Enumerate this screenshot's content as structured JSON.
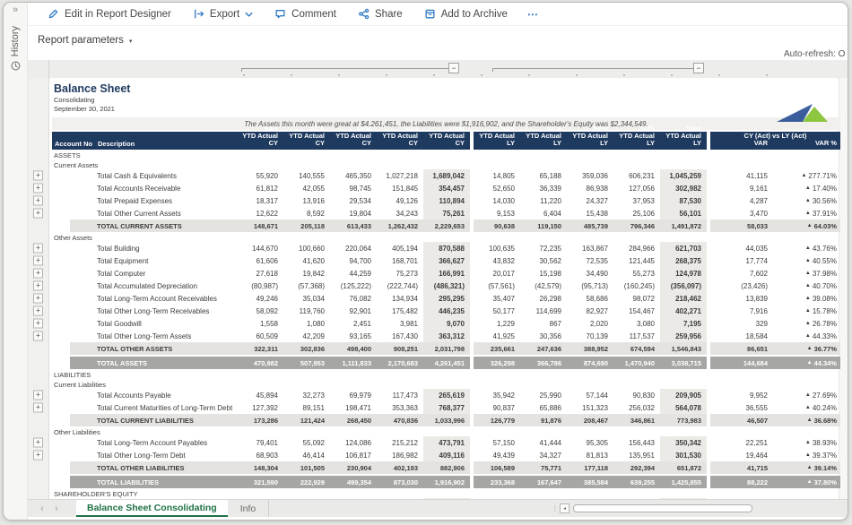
{
  "colors": {
    "accent_blue": "#2e7bc4",
    "header_navy": "#1f3a5f",
    "tab_green": "#1f7246",
    "logo_blue": "#3c5d9b",
    "logo_green": "#8dc63f",
    "subtotal_gray": "#e4e3e0",
    "grand_gray": "#a6a6a4",
    "shaded_col": "#ebeae7"
  },
  "glyphs": {
    "expander": "»",
    "more": "⋯",
    "collapse": "−",
    "expand": "+",
    "chevron_down": "▾",
    "tab_prev": "‹",
    "tab_next": "›",
    "splitter": "⁞",
    "scroll_left": "◄",
    "up_triangle": "▲"
  },
  "sidebar": {
    "history_label": "History"
  },
  "toolbar": {
    "items": [
      {
        "label": "Edit in Report Designer",
        "icon": "pencil",
        "chevron": false
      },
      {
        "label": "Export",
        "icon": "export",
        "chevron": true
      },
      {
        "label": "Comment",
        "icon": "comment",
        "chevron": false
      },
      {
        "label": "Share",
        "icon": "share",
        "chevron": false
      },
      {
        "label": "Add to Archive",
        "icon": "archive",
        "chevron": false
      }
    ]
  },
  "report_parameters_label": "Report parameters",
  "auto_refresh_label": "Auto-refresh: O",
  "report": {
    "title": "Balance Sheet",
    "subtitle": "Consolidating",
    "date": "September 30, 2021",
    "note": "The Assets this month were great at $4,261,451, the Liabilities were $1,916,902, and the Shareholder's Equity was $2,344,549.",
    "header": {
      "account_no": "Account No",
      "description": "Description",
      "value_cols": [
        {
          "l1": "SAS",
          "l2": "YTD Actual CY"
        },
        {
          "l1": "SCA",
          "l2": "YTD Actual CY"
        },
        {
          "l1": "SEM",
          "l2": "YTD Actual CY"
        },
        {
          "l1": "SUS",
          "l2": "YTD Actual CY"
        },
        {
          "l1": "Total",
          "l2": "YTD Actual CY"
        },
        {
          "l1": "SAS",
          "l2": "YTD Actual LY"
        },
        {
          "l1": "SCA",
          "l2": "YTD Actual LY"
        },
        {
          "l1": "SEM",
          "l2": "YTD Actual LY"
        },
        {
          "l1": "SUS",
          "l2": "YTD Actual LY"
        },
        {
          "l1": "Total",
          "l2": "YTD Actual LY"
        }
      ],
      "var_group": "CY (Act) vs LY (Act)",
      "var": "VAR",
      "var_pct": "VAR %"
    },
    "rows": [
      {
        "type": "section",
        "label": "ASSETS"
      },
      {
        "type": "section",
        "label": "Current Assets"
      },
      {
        "type": "account",
        "label": "Total Cash & Equivalents",
        "values": [
          "55,920",
          "140,555",
          "465,350",
          "1,027,218",
          "1,689,042",
          "14,805",
          "65,188",
          "359,036",
          "606,231",
          "1,045,259"
        ],
        "var": "41,115",
        "var_pct": "▲277.71%"
      },
      {
        "type": "account",
        "label": "Total Accounts Receivable",
        "values": [
          "61,812",
          "42,055",
          "98,745",
          "151,845",
          "354,457",
          "52,650",
          "36,339",
          "86,938",
          "127,056",
          "302,982"
        ],
        "var": "9,161",
        "var_pct": "▲17.40%"
      },
      {
        "type": "account",
        "label": "Total Prepaid Expenses",
        "values": [
          "18,317",
          "13,916",
          "29,534",
          "49,126",
          "110,894",
          "14,030",
          "11,220",
          "24,327",
          "37,953",
          "87,530"
        ],
        "var": "4,287",
        "var_pct": "▲30.56%"
      },
      {
        "type": "account",
        "label": "Total Other Current Assets",
        "values": [
          "12,622",
          "8,592",
          "19,804",
          "34,243",
          "75,261",
          "9,153",
          "6,404",
          "15,438",
          "25,106",
          "56,101"
        ],
        "var": "3,470",
        "var_pct": "▲37.91%"
      },
      {
        "type": "subtotal",
        "label": "TOTAL CURRENT ASSETS",
        "values": [
          "148,671",
          "205,118",
          "613,433",
          "1,262,432",
          "2,229,653",
          "90,638",
          "119,150",
          "485,739",
          "796,346",
          "1,491,872"
        ],
        "var": "58,033",
        "var_pct": "▲64.03%"
      },
      {
        "type": "section",
        "label": "Other Assets"
      },
      {
        "type": "account",
        "label": "Total Building",
        "values": [
          "144,670",
          "100,660",
          "220,064",
          "405,194",
          "870,588",
          "100,635",
          "72,235",
          "163,867",
          "284,966",
          "621,703"
        ],
        "var": "44,035",
        "var_pct": "▲43.76%"
      },
      {
        "type": "account",
        "label": "Total Equipment",
        "values": [
          "61,606",
          "41,620",
          "94,700",
          "168,701",
          "366,627",
          "43,832",
          "30,562",
          "72,535",
          "121,445",
          "268,375"
        ],
        "var": "17,774",
        "var_pct": "▲40.55%"
      },
      {
        "type": "account",
        "label": "Total Computer",
        "values": [
          "27,618",
          "19,842",
          "44,259",
          "75,273",
          "166,991",
          "20,017",
          "15,198",
          "34,490",
          "55,273",
          "124,978"
        ],
        "var": "7,602",
        "var_pct": "▲37.98%"
      },
      {
        "type": "account",
        "label": "Total Accumulated Depreciation",
        "values": [
          "(80,987)",
          "(57,368)",
          "(125,222)",
          "(222,744)",
          "(486,321)",
          "(57,561)",
          "(42,579)",
          "(95,713)",
          "(160,245)",
          "(356,097)"
        ],
        "var": "(23,426)",
        "var_pct": "▲40.70%"
      },
      {
        "type": "account",
        "label": "Total Long-Term Account Receivables",
        "values": [
          "49,246",
          "35,034",
          "76,082",
          "134,934",
          "295,295",
          "35,407",
          "26,298",
          "58,686",
          "98,072",
          "218,462"
        ],
        "var": "13,839",
        "var_pct": "▲39.08%"
      },
      {
        "type": "account",
        "label": "Total Other Long-Term Receivables",
        "values": [
          "58,092",
          "119,760",
          "92,901",
          "175,482",
          "446,235",
          "50,177",
          "114,699",
          "82,927",
          "154,467",
          "402,271"
        ],
        "var": "7,916",
        "var_pct": "▲15.78%"
      },
      {
        "type": "account",
        "label": "Total Goodwill",
        "values": [
          "1,558",
          "1,080",
          "2,451",
          "3,981",
          "9,070",
          "1,229",
          "867",
          "2,020",
          "3,080",
          "7,195"
        ],
        "var": "329",
        "var_pct": "▲26.78%"
      },
      {
        "type": "account",
        "label": "Total Other Long-Term Assets",
        "values": [
          "60,509",
          "42,209",
          "93,165",
          "167,430",
          "363,312",
          "41,925",
          "30,356",
          "70,139",
          "117,537",
          "259,956"
        ],
        "var": "18,584",
        "var_pct": "▲44.33%"
      },
      {
        "type": "subtotal",
        "label": "TOTAL OTHER ASSETS",
        "values": [
          "322,311",
          "302,836",
          "498,400",
          "908,251",
          "2,031,798",
          "235,661",
          "247,636",
          "388,952",
          "674,594",
          "1,546,843"
        ],
        "var": "86,651",
        "var_pct": "▲36.77%"
      },
      {
        "type": "grandtotal",
        "label": "TOTAL ASSETS",
        "values": [
          "470,982",
          "507,953",
          "1,111,833",
          "2,170,683",
          "4,261,451",
          "326,298",
          "366,786",
          "874,690",
          "1,470,940",
          "3,038,715"
        ],
        "var": "144,684",
        "var_pct": "▲44.34%"
      },
      {
        "type": "section",
        "label": "LIABILITIES"
      },
      {
        "type": "section",
        "label": "Current Liabilities"
      },
      {
        "type": "account",
        "label": "Total Accounts Payable",
        "values": [
          "45,894",
          "32,273",
          "69,979",
          "117,473",
          "265,619",
          "35,942",
          "25,990",
          "57,144",
          "90,830",
          "209,905"
        ],
        "var": "9,952",
        "var_pct": "▲27.69%"
      },
      {
        "type": "account",
        "label": "Total Current Maturities of Long-Term Debt",
        "values": [
          "127,392",
          "89,151",
          "198,471",
          "353,363",
          "768,377",
          "90,837",
          "65,886",
          "151,323",
          "256,032",
          "564,078"
        ],
        "var": "36,555",
        "var_pct": "▲40.24%"
      },
      {
        "type": "subtotal",
        "label": "TOTAL CURRENT LIABILITIES",
        "values": [
          "173,286",
          "121,424",
          "268,450",
          "470,836",
          "1,033,996",
          "126,779",
          "91,876",
          "208,467",
          "346,861",
          "773,983"
        ],
        "var": "46,507",
        "var_pct": "▲36.68%"
      },
      {
        "type": "section",
        "label": "Other Liabilities"
      },
      {
        "type": "account",
        "label": "Total Long-Term Account Payables",
        "values": [
          "79,401",
          "55,092",
          "124,086",
          "215,212",
          "473,791",
          "57,150",
          "41,444",
          "95,305",
          "156,443",
          "350,342"
        ],
        "var": "22,251",
        "var_pct": "▲38.93%"
      },
      {
        "type": "account",
        "label": "Total Other Long-Term Debt",
        "values": [
          "68,903",
          "46,414",
          "106,817",
          "186,982",
          "409,116",
          "49,439",
          "34,327",
          "81,813",
          "135,951",
          "301,530"
        ],
        "var": "19,464",
        "var_pct": "▲39.37%"
      },
      {
        "type": "subtotal",
        "label": "TOTAL OTHER LIABILITIES",
        "values": [
          "148,304",
          "101,505",
          "230,904",
          "402,193",
          "882,906",
          "106,589",
          "75,771",
          "177,118",
          "292,394",
          "651,872"
        ],
        "var": "41,715",
        "var_pct": "▲39.14%"
      },
      {
        "type": "grandtotal",
        "label": "TOTAL LIABILITIES",
        "values": [
          "321,590",
          "222,929",
          "499,354",
          "873,030",
          "1,916,902",
          "233,368",
          "167,647",
          "385,584",
          "639,255",
          "1,425,855"
        ],
        "var": "88,222",
        "var_pct": "▲37.80%"
      },
      {
        "type": "section",
        "label": "SHAREHOLDER'S EQUITY"
      }
    ]
  },
  "tab_bar": {
    "tabs": [
      {
        "label": "Balance Sheet Consolidating",
        "active": true
      },
      {
        "label": "Info",
        "active": false
      }
    ]
  }
}
